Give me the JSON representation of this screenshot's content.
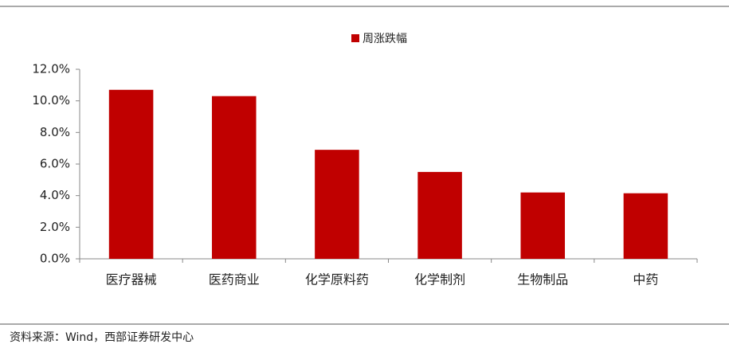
{
  "chart_data": {
    "type": "bar",
    "legend_label": "周涨跌幅",
    "categories": [
      "医疗器械",
      "医药商业",
      "化学原料药",
      "化学制剂",
      "生物制品",
      "中药"
    ],
    "values": [
      10.7,
      10.3,
      6.9,
      5.5,
      4.2,
      4.15
    ],
    "color": "#c00000",
    "ylim": [
      0,
      12
    ],
    "yticks": [
      {
        "value": 0,
        "label": "0.0%"
      },
      {
        "value": 2,
        "label": "2.0%"
      },
      {
        "value": 4,
        "label": "4.0%"
      },
      {
        "value": 6,
        "label": "6.0%"
      },
      {
        "value": 8,
        "label": "8.0%"
      },
      {
        "value": 10,
        "label": "10.0%"
      },
      {
        "value": 12,
        "label": "12.0%"
      }
    ],
    "grid": false,
    "source": "资料来源：Wind，西部证券研发中心"
  }
}
